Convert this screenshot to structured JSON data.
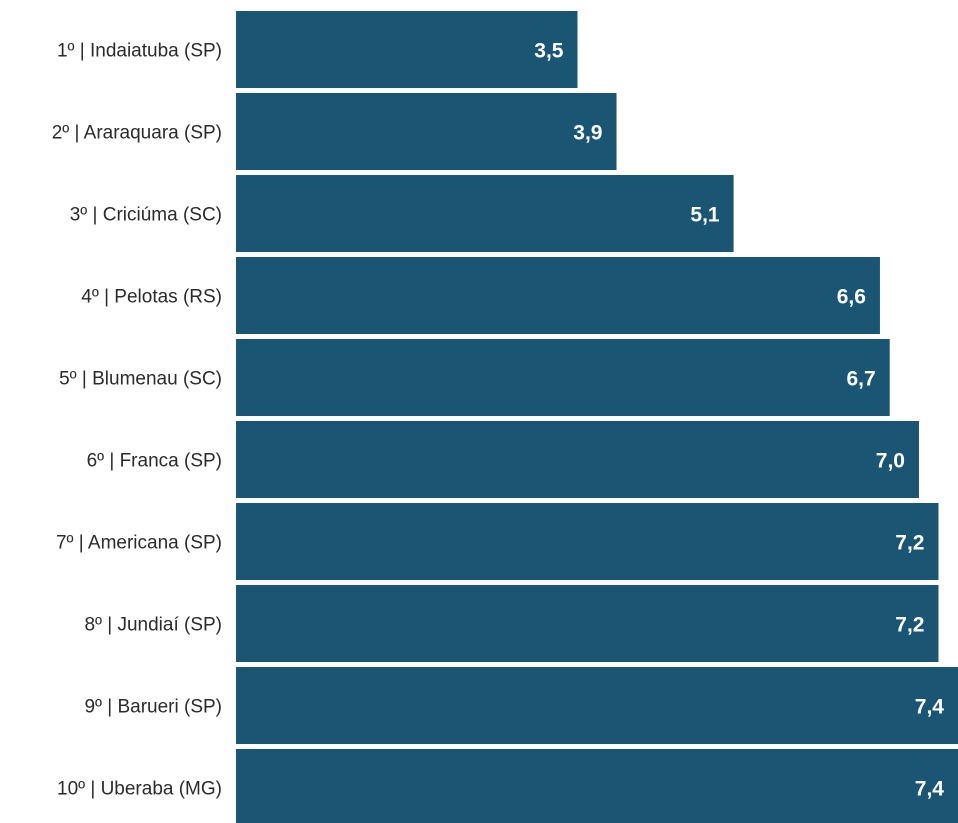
{
  "chart_data": {
    "type": "bar",
    "orientation": "horizontal",
    "categories": [
      "1º | Indaiatuba (SP)",
      "2º | Araraquara (SP)",
      "3º | Criciúma (SC)",
      "4º | Pelotas (RS)",
      "5º | Blumenau (SC)",
      "6º | Franca (SP)",
      "7º | Americana (SP)",
      "8º | Jundiaí (SP)",
      "9º | Barueri (SP)",
      "10º | Uberaba (MG)"
    ],
    "values": [
      3.5,
      3.9,
      5.1,
      6.6,
      6.7,
      7.0,
      7.2,
      7.2,
      7.4,
      7.4
    ],
    "value_labels": [
      "3,5",
      "3,9",
      "5,1",
      "6,6",
      "6,7",
      "7,0",
      "7,2",
      "7,2",
      "7,4",
      "7,4"
    ],
    "xlim": [
      0,
      7.4
    ],
    "grid": false,
    "legend": "none",
    "colors": {
      "bar": "#1a5574",
      "value_text": "#ffffff",
      "label_text": "#2b2b2b"
    }
  }
}
